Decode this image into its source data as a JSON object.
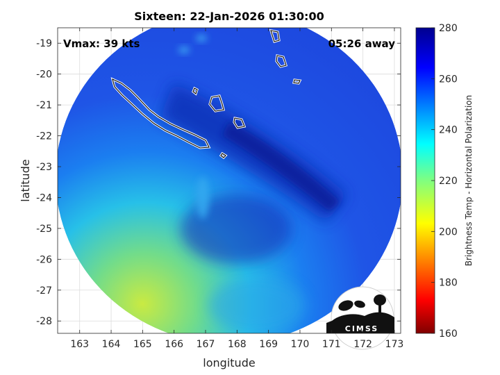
{
  "chart_data": {
    "type": "heatmap",
    "title": "Sixteen: 22-Jan-2026 01:30:00",
    "xlabel": "longitude",
    "ylabel": "latitude",
    "xlim": [
      162.3,
      173.2
    ],
    "ylim": [
      -28.4,
      -18.5
    ],
    "xticks": [
      163,
      164,
      165,
      166,
      167,
      168,
      169,
      170,
      171,
      172,
      173
    ],
    "yticks": [
      -19,
      -20,
      -21,
      -22,
      -23,
      -24,
      -25,
      -26,
      -27,
      -28
    ],
    "grid": true,
    "colorbar": {
      "label": "Brightness Temp - Horizontal Polarization",
      "range": [
        160,
        280
      ],
      "ticks": [
        280,
        260,
        240,
        220,
        200,
        180,
        160
      ],
      "colormap": "jet"
    },
    "annotations": {
      "vmax": "Vmax: 39 kts",
      "time_away": "05:26 away"
    },
    "colors": {
      "deep_blue": "#0b1e9e",
      "blue": "#1f55e6",
      "cyan": "#22c8e6",
      "yellow_green": "#c4e846"
    },
    "logo_text": "CIMSS"
  }
}
